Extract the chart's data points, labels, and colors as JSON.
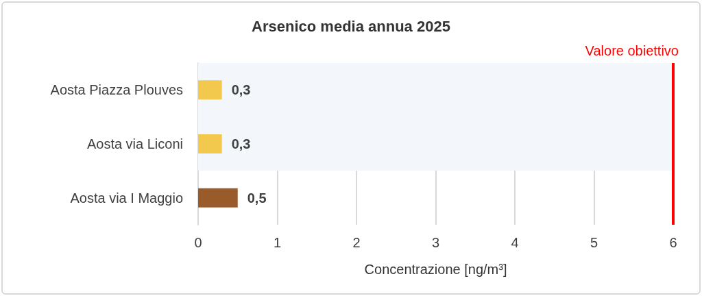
{
  "chart_data": {
    "type": "bar",
    "orientation": "horizontal",
    "title": "Arsenico media annua 2025",
    "xlabel": "Concentrazione [ng/m³]",
    "categories": [
      "Aosta Piazza Plouves",
      "Aosta via Liconi",
      "Aosta via I Maggio"
    ],
    "values": [
      0.3,
      0.3,
      0.5
    ],
    "colors": [
      "#f2c94c",
      "#f2c94c",
      "#9a5b2a"
    ],
    "value_labels": [
      "0,3",
      "0,3",
      "0,5"
    ],
    "xlim": [
      0,
      6
    ],
    "xticks": [
      0,
      1,
      2,
      3,
      4,
      5,
      6
    ],
    "grid": "x",
    "ref_lines": [
      {
        "axis": "x",
        "value": 6,
        "label": "Valore obiettivo",
        "color": "#ff0000"
      }
    ],
    "bands": [
      {
        "axis": "y",
        "from": "Aosta Piazza Plouves",
        "to": "Aosta via Liconi",
        "color": "#f3f6fb"
      }
    ]
  }
}
